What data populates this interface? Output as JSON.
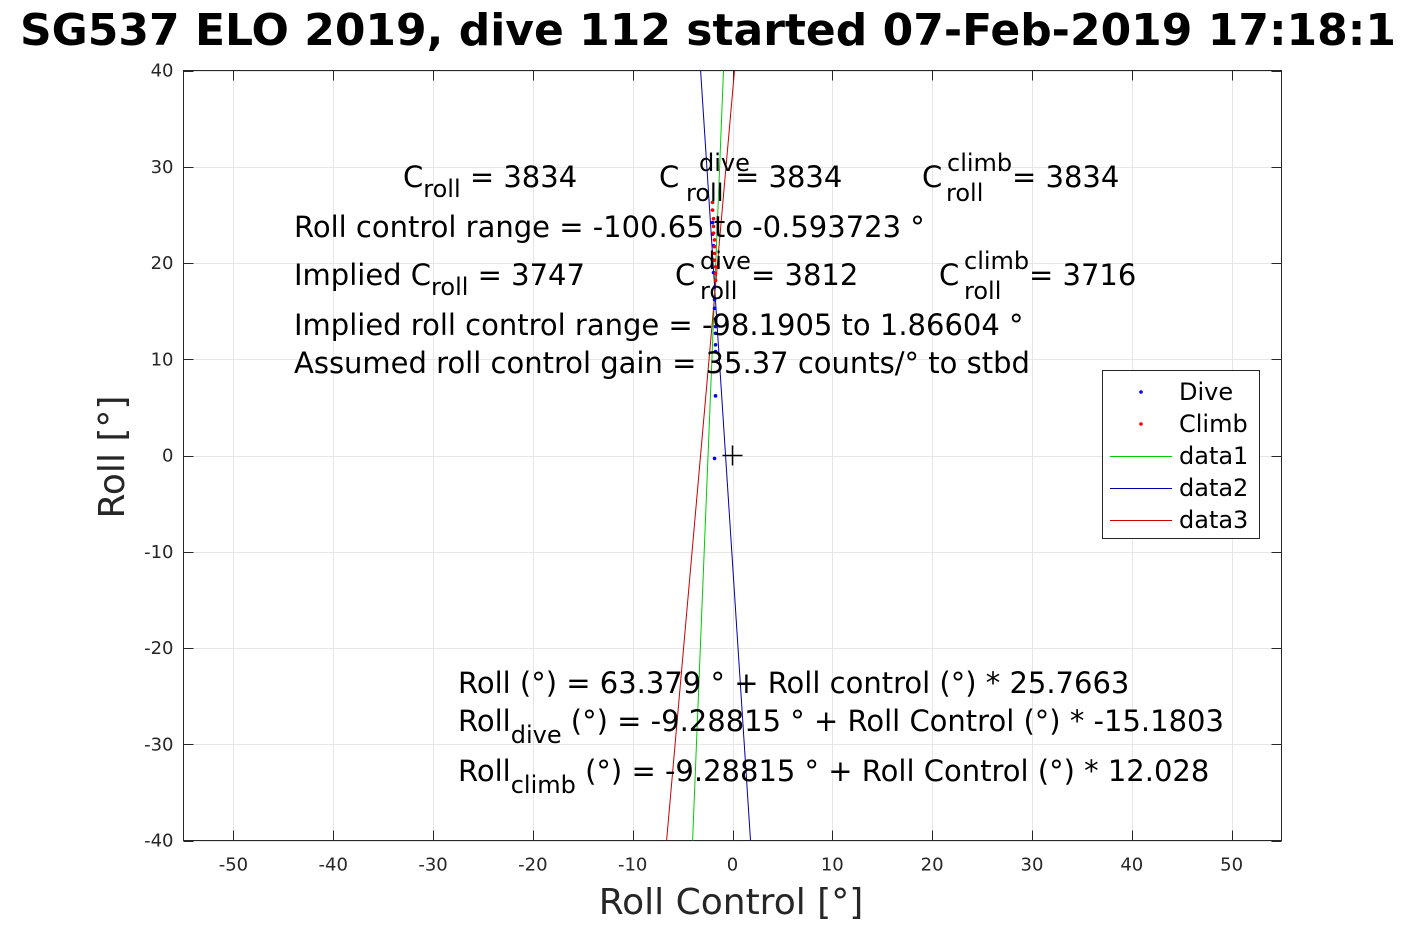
{
  "chart_data": {
    "type": "scatter",
    "title": "SG537 ELO 2019, dive 112 started 07-Feb-2019 17:18:1",
    "xlabel": "Roll Control [°]",
    "ylabel": "Roll [°]",
    "xlim": [
      -55,
      55
    ],
    "ylim": [
      -40,
      40
    ],
    "xticks": [
      -50,
      -40,
      -30,
      -20,
      -10,
      0,
      10,
      20,
      30,
      40,
      50
    ],
    "yticks": [
      -40,
      -30,
      -20,
      -10,
      0,
      10,
      20,
      30,
      40
    ],
    "grid": true,
    "legend_position": "right",
    "colors": {
      "dive": "#0000ff",
      "climb": "#ff0000",
      "data1": "#00cc00",
      "data2": "#0000aa",
      "data3": "#cc0000",
      "axes": "#262626",
      "grid": "#e6e6e6"
    },
    "series": [
      {
        "name": "Dive",
        "kind": "points",
        "color": "#0000ff",
        "points": [
          [
            -1.8,
            -0.3
          ],
          [
            -1.7,
            6.2
          ],
          [
            -1.7,
            10.8
          ],
          [
            -1.7,
            11.5
          ],
          [
            -1.7,
            12.7
          ],
          [
            -1.7,
            13.4
          ],
          [
            -1.7,
            14.2
          ],
          [
            -1.8,
            15.3
          ],
          [
            -1.8,
            16.2
          ],
          [
            -1.8,
            17.5
          ],
          [
            -1.9,
            19.0
          ],
          [
            -1.9,
            20.3
          ],
          [
            -1.9,
            21.8
          ],
          [
            -2.0,
            23.0
          ],
          [
            -2.0,
            24.2
          ]
        ]
      },
      {
        "name": "Climb",
        "kind": "points",
        "color": "#ff0000",
        "points": [
          [
            -1.7,
            18.2
          ],
          [
            -1.7,
            18.9
          ],
          [
            -1.7,
            19.6
          ],
          [
            -1.8,
            20.3
          ],
          [
            -1.8,
            21.0
          ],
          [
            -1.8,
            21.7
          ],
          [
            -1.8,
            22.4
          ],
          [
            -1.9,
            23.1
          ],
          [
            -1.9,
            23.8
          ],
          [
            -1.9,
            24.6
          ],
          [
            -2.0,
            25.5
          ],
          [
            -2.0,
            26.3
          ]
        ]
      },
      {
        "name": "data1",
        "kind": "line",
        "color": "#00cc00",
        "points": [
          [
            -4.0,
            -40
          ],
          [
            -0.9,
            40
          ]
        ]
      },
      {
        "name": "data2",
        "kind": "line",
        "color": "#0000aa",
        "points": [
          [
            1.8,
            -40
          ],
          [
            -3.2,
            40
          ]
        ]
      },
      {
        "name": "data3",
        "kind": "line",
        "color": "#cc0000",
        "points": [
          [
            -6.6,
            -40
          ],
          [
            0.2,
            40
          ]
        ]
      }
    ],
    "marker": {
      "symbol": "+",
      "x": 0,
      "y": 0
    },
    "annotations": {
      "c_roll": {
        "base": "C",
        "sub": "roll",
        "value": " = 3834"
      },
      "c_roll_dive": {
        "base": "C",
        "sup": "dive",
        "sub": "roll",
        "value": " = 3834"
      },
      "c_roll_climb": {
        "base": "C",
        "sup": "climb",
        "sub": "roll",
        "value": " = 3834"
      },
      "range": "Roll control range = -100.65 to -0.593723 °",
      "implied_c_roll": {
        "prefix": "Implied C",
        "sub": "roll",
        "value": " = 3747"
      },
      "implied_c_roll_dive": {
        "base": "C",
        "sup": "dive",
        "sub": "roll",
        "value": " = 3812"
      },
      "implied_c_roll_climb": {
        "base": "C",
        "sup": "climb",
        "sub": "roll",
        "value": " = 3716"
      },
      "implied_range": "Implied roll control range = -98.1905 to 1.86604 °",
      "gain": "Assumed roll control gain = 35.37 counts/° to stbd",
      "fit_all": "Roll (°) = 63.379 ° + Roll control (°) * 25.7663",
      "fit_dive": {
        "base": "Roll",
        "sub": "dive",
        "rest": " (°) = -9.28815 ° + Roll Control (°) * -15.1803"
      },
      "fit_climb": {
        "base": "Roll",
        "sub": "climb",
        "rest": " (°) = -9.28815 ° + Roll Control (°) * 12.028"
      }
    }
  }
}
